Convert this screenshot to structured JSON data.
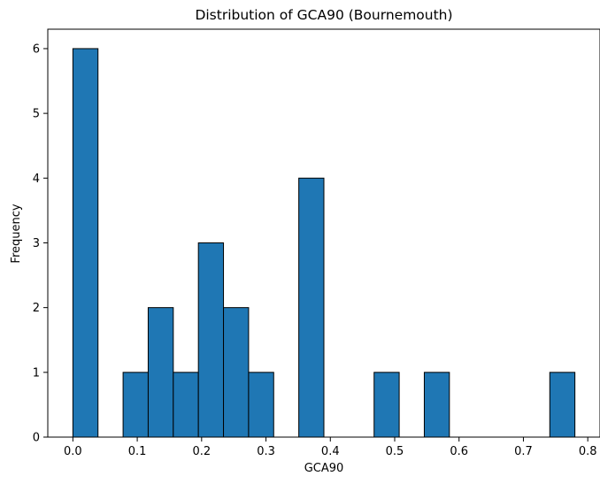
{
  "chart_data": {
    "type": "bar",
    "title": "Distribution of GCA90 (Bournemouth)",
    "xlabel": "GCA90",
    "ylabel": "Frequency",
    "xlim": [
      -0.039,
      0.819
    ],
    "ylim": [
      0,
      6.3
    ],
    "x_ticks": [
      0.0,
      0.1,
      0.2,
      0.3,
      0.4,
      0.5,
      0.6,
      0.7,
      0.8
    ],
    "x_tick_labels": [
      "0.0",
      "0.1",
      "0.2",
      "0.3",
      "0.4",
      "0.5",
      "0.6",
      "0.7",
      "0.8"
    ],
    "y_ticks": [
      0,
      1,
      2,
      3,
      4,
      5,
      6
    ],
    "y_tick_labels": [
      "0",
      "1",
      "2",
      "3",
      "4",
      "5",
      "6"
    ],
    "bin_edges": [
      0.0,
      0.039,
      0.078,
      0.117,
      0.156,
      0.195,
      0.234,
      0.273,
      0.312,
      0.351,
      0.39,
      0.429,
      0.468,
      0.507,
      0.546,
      0.585,
      0.624,
      0.663,
      0.702,
      0.741,
      0.78
    ],
    "values": [
      6,
      0,
      1,
      2,
      1,
      3,
      2,
      1,
      0,
      4,
      0,
      0,
      1,
      0,
      1,
      0,
      0,
      0,
      0,
      1
    ],
    "bar_color": "#1f77b4",
    "edge_color": "#000000",
    "grid": false,
    "legend": "none"
  }
}
